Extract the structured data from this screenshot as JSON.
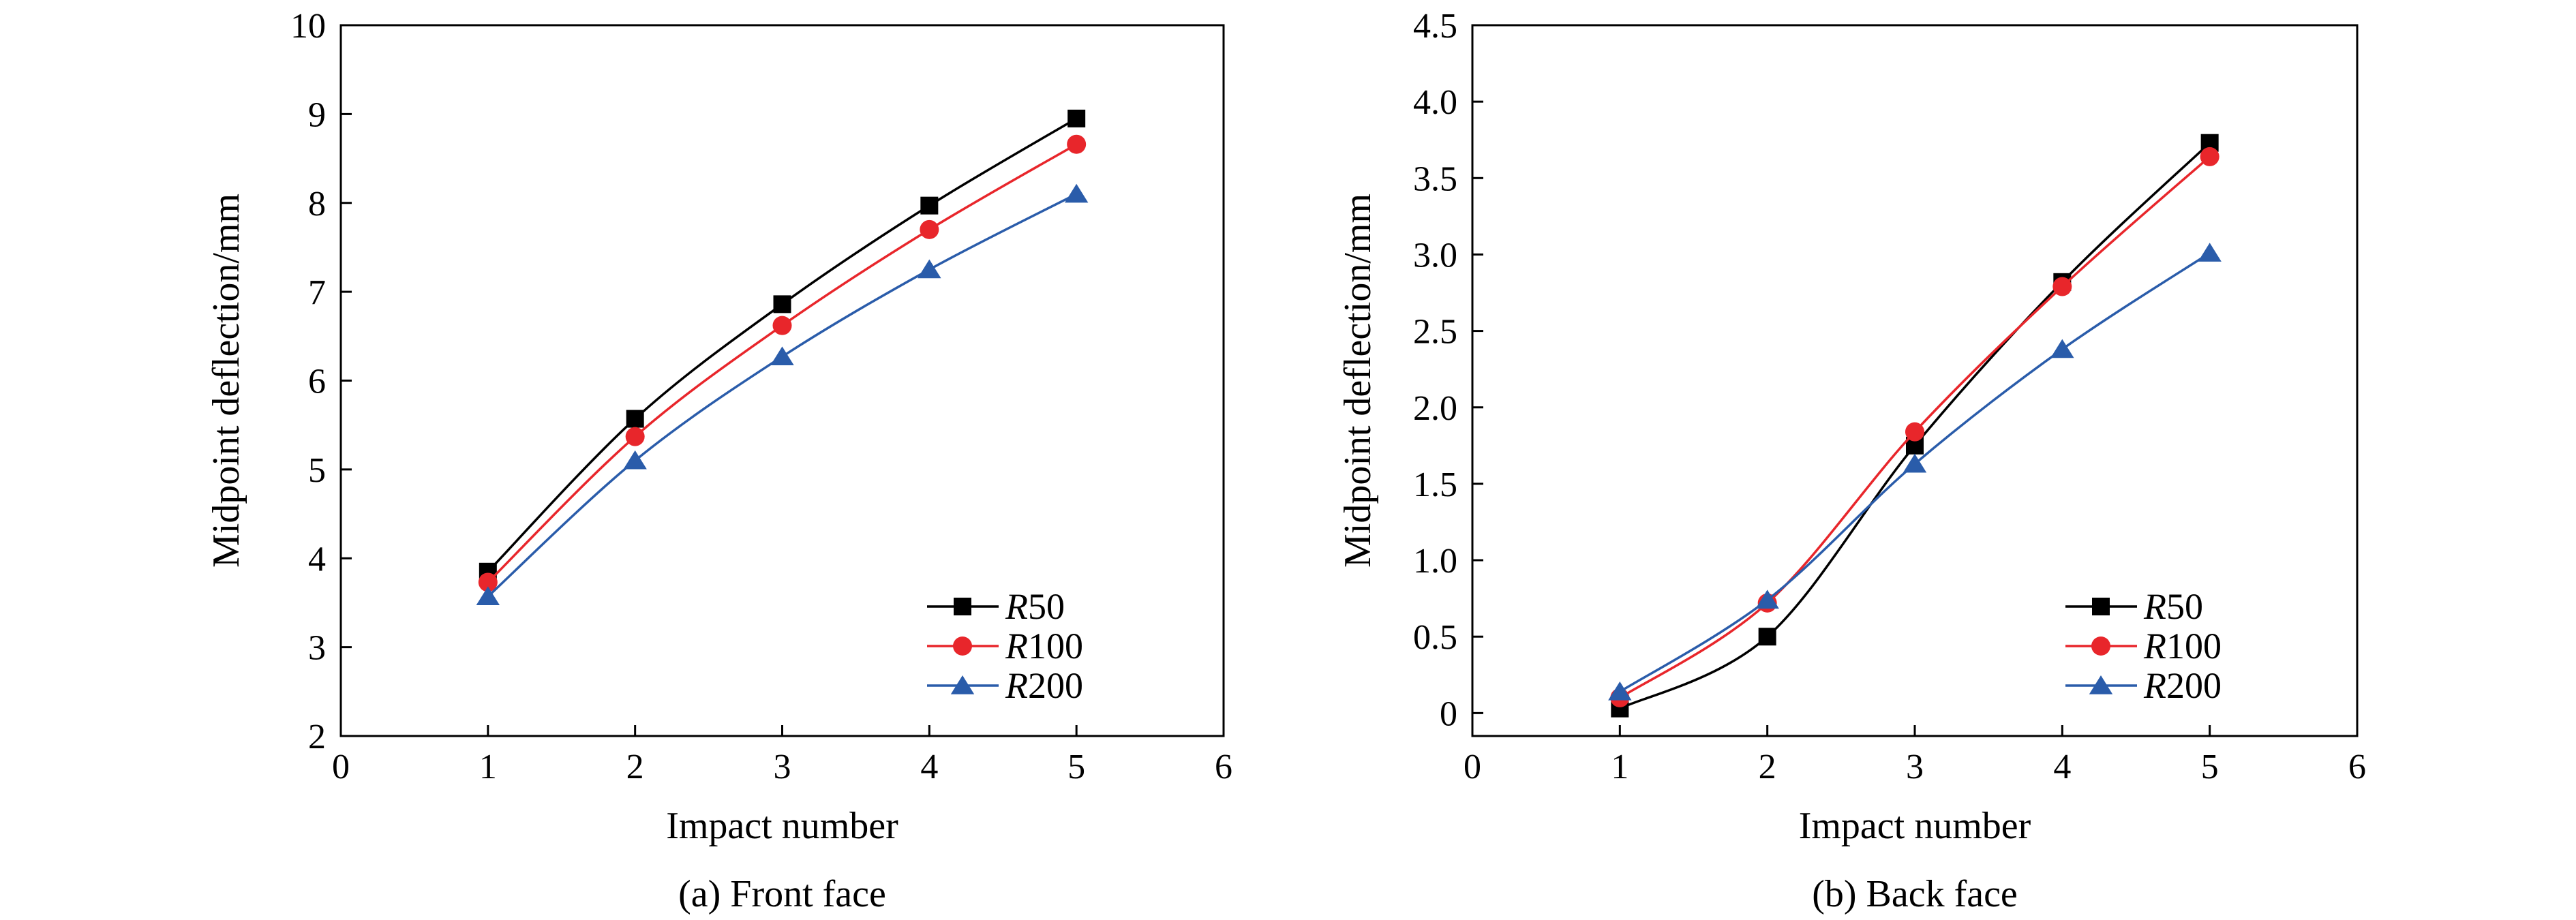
{
  "chart_data": [
    {
      "type": "line",
      "caption": "(a) Front face",
      "xlabel": "Impact number",
      "ylabel": "Midpoint deflection/mm",
      "xlim": [
        0,
        6
      ],
      "ylim": [
        2,
        10
      ],
      "xticks": [
        "0",
        "1",
        "2",
        "3",
        "4",
        "5",
        "6"
      ],
      "yticks": [
        "2",
        "3",
        "4",
        "5",
        "6",
        "7",
        "8",
        "9",
        "10"
      ],
      "grid": false,
      "legend_position": "bottom-right",
      "x": [
        1,
        2,
        3,
        4,
        5
      ],
      "series": [
        {
          "name_italic": "R",
          "name_suffix": "50",
          "values": [
            3.85,
            5.57,
            6.86,
            7.97,
            8.95
          ],
          "color": "#000000",
          "marker": "square"
        },
        {
          "name_italic": "R",
          "name_suffix": "100",
          "values": [
            3.73,
            5.37,
            6.62,
            7.7,
            8.66
          ],
          "color": "#e8262b",
          "marker": "circle"
        },
        {
          "name_italic": "R",
          "name_suffix": "200",
          "values": [
            3.57,
            5.1,
            6.27,
            7.25,
            8.1
          ],
          "color": "#2a5caa",
          "marker": "triangle"
        }
      ]
    },
    {
      "type": "line",
      "caption": "(b) Back face",
      "xlabel": "Impact number",
      "ylabel": "Midpoint deflection/mm",
      "xlim": [
        0,
        6
      ],
      "ylim": [
        -0.15,
        4.5
      ],
      "xticks": [
        "0",
        "1",
        "2",
        "3",
        "4",
        "5",
        "6"
      ],
      "yticks": [
        "0",
        "0.5",
        "1.0",
        "1.5",
        "2.0",
        "2.5",
        "3.0",
        "3.5",
        "4.0",
        "4.5"
      ],
      "grid": false,
      "legend_position": "bottom-right",
      "x": [
        1,
        2,
        3,
        4,
        5
      ],
      "series": [
        {
          "name_italic": "R",
          "name_suffix": "50",
          "values": [
            0.03,
            0.5,
            1.75,
            2.82,
            3.73
          ],
          "color": "#000000",
          "marker": "square"
        },
        {
          "name_italic": "R",
          "name_suffix": "100",
          "values": [
            0.1,
            0.72,
            1.84,
            2.79,
            3.64
          ],
          "color": "#e8262b",
          "marker": "circle"
        },
        {
          "name_italic": "R",
          "name_suffix": "200",
          "values": [
            0.14,
            0.74,
            1.63,
            2.38,
            3.01
          ],
          "color": "#2a5caa",
          "marker": "triangle"
        }
      ]
    }
  ]
}
